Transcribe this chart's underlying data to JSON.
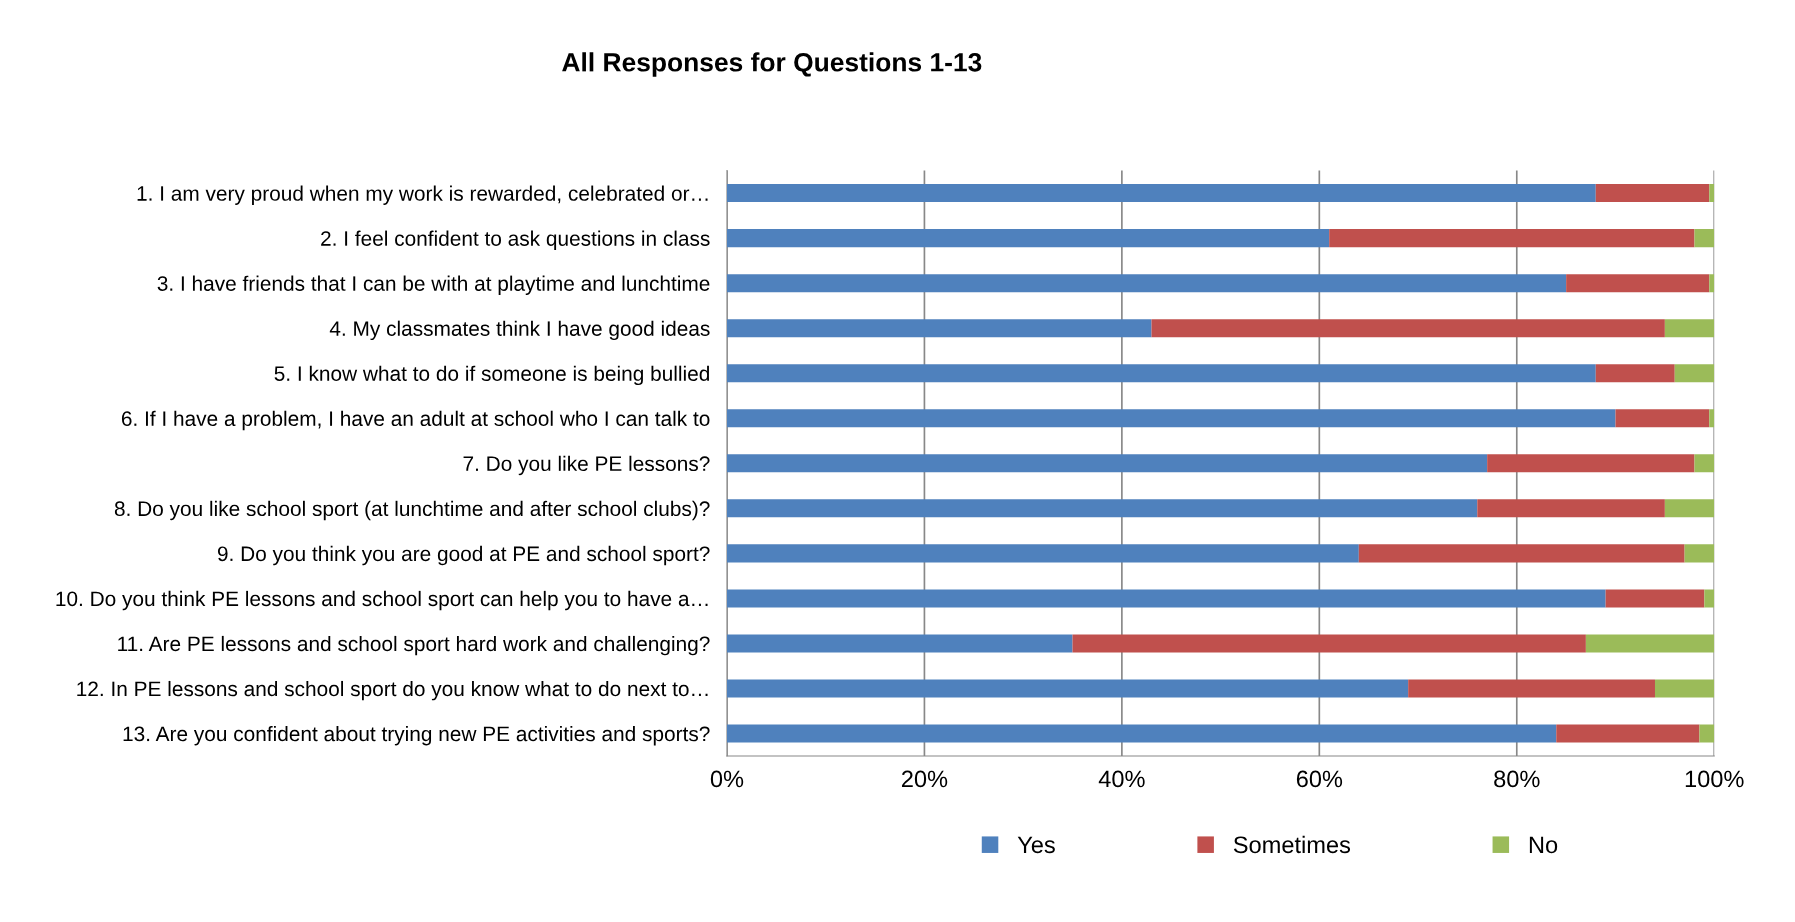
{
  "chart_data": {
    "type": "bar",
    "orientation": "horizontal",
    "stacked": true,
    "title": "All Responses for Questions 1-13",
    "categories": [
      "1. I am very proud when my work is rewarded, celebrated or…",
      "2. I feel confident to ask questions in class",
      "3. I have friends that I can be with at playtime and lunchtime",
      "4. My classmates think I have good ideas",
      "5. I know what to do if someone is being bullied",
      "6. If I have a problem, I have an adult at school who I can talk to",
      "7. Do you like PE lessons?",
      "8. Do you like school sport (at lunchtime and after school clubs)?",
      "9. Do you think you are good at PE and school sport?",
      "10. Do you think PE lessons and school sport can help you to have a…",
      "11. Are PE lessons and school sport hard work and challenging?",
      "12. In PE lessons and school sport do you know what to do next to…",
      "13. Are you confident about trying new PE activities and sports?"
    ],
    "series": [
      {
        "name": "Yes",
        "color": "#4f81bd",
        "values": [
          88,
          61,
          85,
          43,
          88,
          90,
          77,
          76,
          64,
          89,
          35,
          69,
          84
        ]
      },
      {
        "name": "Sometimes",
        "color": "#c0504d",
        "values": [
          11.5,
          37,
          14.5,
          52,
          8,
          9.5,
          21,
          19,
          33,
          10,
          52,
          25,
          14.5
        ]
      },
      {
        "name": "No",
        "color": "#9bbb59",
        "values": [
          0.5,
          2,
          0.5,
          5,
          4,
          0.5,
          2,
          5,
          3,
          1,
          13,
          6,
          1.5
        ]
      }
    ],
    "xlim": [
      0,
      100
    ],
    "xticks": [
      {
        "value": 0,
        "label": "0%"
      },
      {
        "value": 20,
        "label": "20%"
      },
      {
        "value": 40,
        "label": "40%"
      },
      {
        "value": 60,
        "label": "60%"
      },
      {
        "value": 80,
        "label": "80%"
      },
      {
        "value": 100,
        "label": "100%"
      }
    ],
    "grid": "x",
    "legend": "bottom"
  }
}
